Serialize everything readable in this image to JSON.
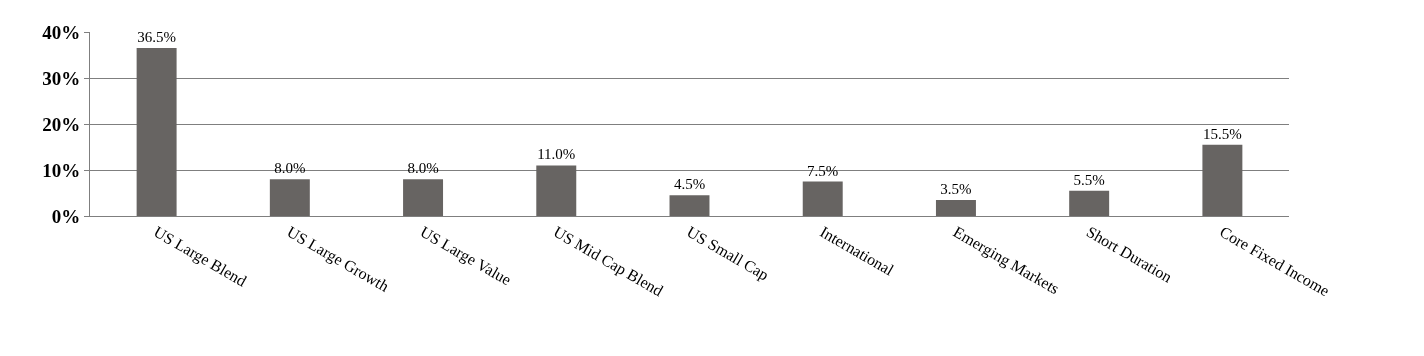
{
  "chart_data": {
    "type": "bar",
    "categories": [
      "US Large Blend",
      "US Large Growth",
      "US Large Value",
      "US Mid Cap Blend",
      "US Small Cap",
      "International",
      "Emerging Markets",
      "Short Duration",
      "Core Fixed Income"
    ],
    "values": [
      36.5,
      8.0,
      8.0,
      11.0,
      4.5,
      7.5,
      3.5,
      5.5,
      15.5
    ],
    "value_labels": [
      "36.5%",
      "8.0%",
      "8.0%",
      "11.0%",
      "4.5%",
      "7.5%",
      "3.5%",
      "5.5%",
      "15.5%"
    ],
    "color": "#676462",
    "ylim": [
      0,
      40
    ],
    "yticks": [
      {
        "value": 0,
        "label": "0%"
      },
      {
        "value": 10,
        "label": "10%"
      },
      {
        "value": 20,
        "label": "20%"
      },
      {
        "value": 30,
        "label": "30%"
      },
      {
        "value": 40,
        "label": "40%"
      }
    ],
    "grid": "y",
    "legend": false
  }
}
